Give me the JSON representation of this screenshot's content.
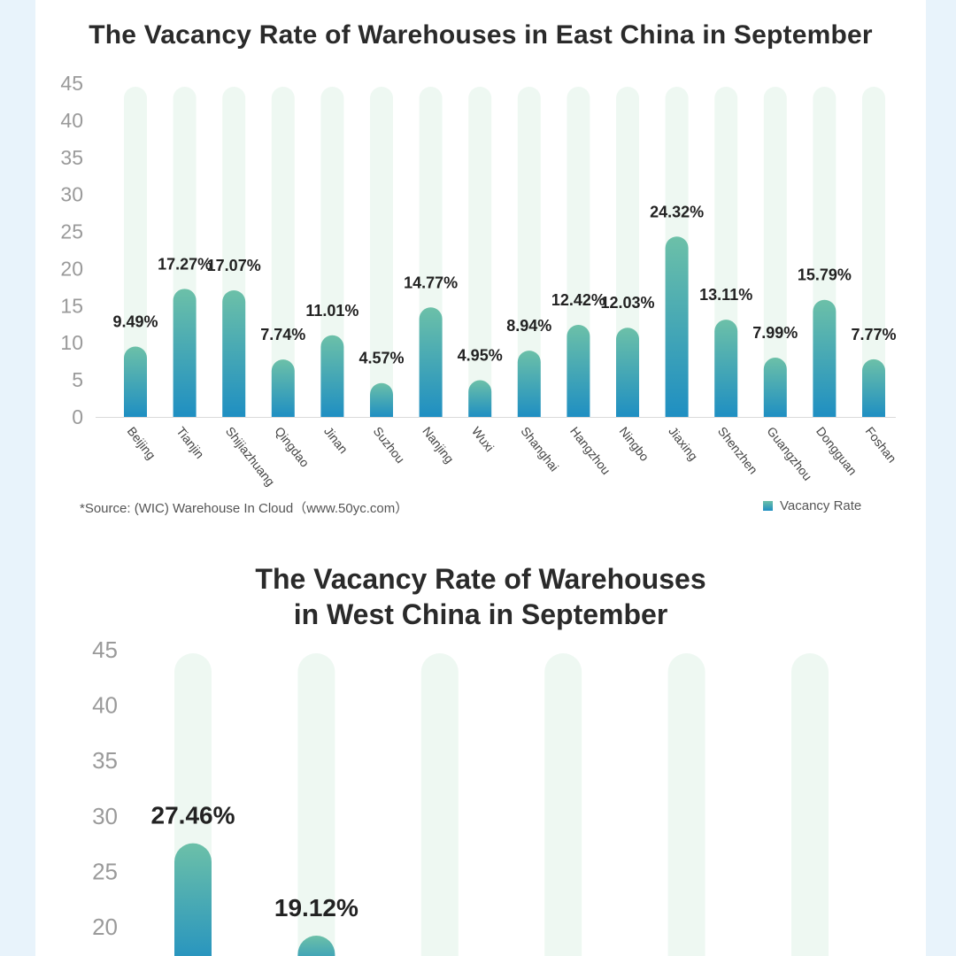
{
  "east": {
    "title": "The Vacancy Rate of Warehouses in East China in September",
    "source": "*Source: (WIC) Warehouse In Cloud（www.50yc.com）",
    "legend_label": "Vacancy Rate"
  },
  "west": {
    "title_line1": "The Vacancy Rate of Warehouses",
    "title_line2": "in West China in September"
  },
  "colors": {
    "bar_top": "#6cc0a8",
    "bar_bottom": "#1f8fc2",
    "track": "#eef8f2",
    "axis_text": "#9a9a9a",
    "label_text": "#222222"
  },
  "chart_data": [
    {
      "type": "bar",
      "title": "The Vacancy Rate of Warehouses in East China in September",
      "categories": [
        "Beijing",
        "Tianjin",
        "Shijiazhuang",
        "Qingdao",
        "Jinan",
        "Suzhou",
        "Nanjing",
        "Wuxi",
        "Shanghai",
        "Hangzhou",
        "Ningbo",
        "Jiaxing",
        "Shenzhen",
        "Guangzhou",
        "Dongguan",
        "Foshan"
      ],
      "series": [
        {
          "name": "Vacancy Rate",
          "values": [
            9.49,
            17.27,
            17.07,
            7.74,
            11.01,
            4.57,
            14.77,
            4.95,
            8.94,
            12.42,
            12.03,
            24.32,
            13.11,
            7.99,
            15.79,
            7.77
          ],
          "labels": [
            "9.49%",
            "17.27%",
            "17.07%",
            "7.74%",
            "11.01%",
            "4.57%",
            "14.77%",
            "4.95%",
            "8.94%",
            "12.42%",
            "12.03%",
            "24.32%",
            "13.11%",
            "7.99%",
            "15.79%",
            "7.77%"
          ]
        }
      ],
      "ylim": [
        0,
        45
      ],
      "yticks": [
        0,
        5,
        10,
        15,
        20,
        25,
        30,
        35,
        40,
        45
      ],
      "legend": "bottom-right"
    },
    {
      "type": "bar",
      "title": "The Vacancy Rate of Warehouses in West China in September",
      "categories": [
        "",
        "",
        "",
        "",
        "",
        ""
      ],
      "series": [
        {
          "values": [
            27.46,
            19.12,
            null,
            null,
            null,
            null
          ],
          "labels": [
            "27.46%",
            "19.12%",
            "",
            "",
            "",
            ""
          ]
        }
      ],
      "ylim": [
        0,
        45
      ],
      "yticks": [
        20,
        25,
        30,
        35,
        40,
        45
      ]
    }
  ]
}
